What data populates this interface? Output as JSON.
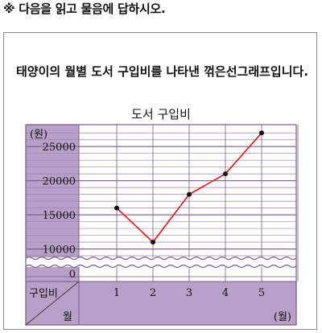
{
  "instruction": "※ 다음을 읽고 물음에 답하시오.",
  "question": "태양이의 월별 도서 구입비를 나타낸 꺾은선그래프입니다.",
  "colors": {
    "panel": "#b8a0c8",
    "grid_major": "#7a5a8a",
    "grid_minor": "#9a84aa",
    "line": "#e81010",
    "point": "#111111"
  },
  "chart_data": {
    "type": "line",
    "title": "도서 구입비",
    "y_unit_label": "(원)",
    "x_unit_label": "(월)",
    "row_header_top": "구입비",
    "row_header_bottom": "월",
    "y_ticks": [
      "25000",
      "20000",
      "15000",
      "10000"
    ],
    "y_zero_label": "0",
    "y_axis_break": true,
    "ylim": [
      9000,
      27500
    ],
    "y_minor_step": 1000,
    "categories": [
      "1",
      "2",
      "3",
      "4",
      "5"
    ],
    "series": [
      {
        "values": [
          16000,
          11000,
          18000,
          21000,
          27000
        ]
      }
    ],
    "grid": true
  }
}
